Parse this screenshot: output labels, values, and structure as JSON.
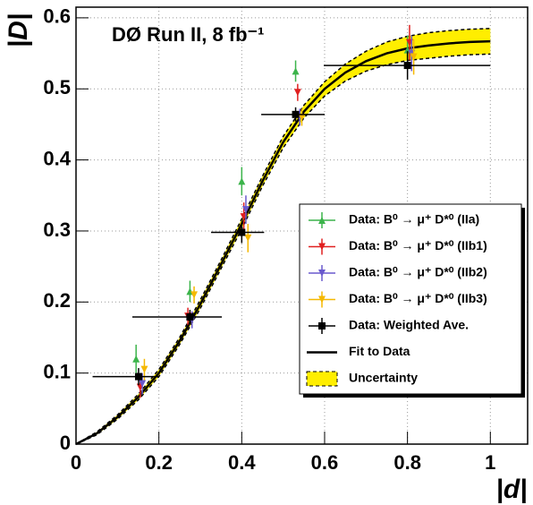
{
  "chart_data": {
    "type": "errorbar",
    "title": "DØ Run II, 8 fb⁻¹",
    "x_label": "|d|",
    "y_label": "|D|",
    "xlim": [
      0,
      1.09
    ],
    "ylim": [
      0,
      0.615
    ],
    "xticks": [
      0,
      0.2,
      0.4,
      0.6,
      0.8,
      1
    ],
    "yticks": [
      0,
      0.1,
      0.2,
      0.3,
      0.4,
      0.5,
      0.6
    ],
    "grid": true,
    "legend": "lower right",
    "series": [
      {
        "name": "Data: B⁰ → μ⁺ D*⁰ (IIa)",
        "color": "#3cb44b",
        "marker": "triangle-up",
        "x": [
          0.145,
          0.275,
          0.4,
          0.53,
          0.8
        ],
        "values": [
          0.12,
          0.215,
          0.37,
          0.525,
          0.555
        ],
        "yerr": [
          0.02,
          0.015,
          0.02,
          0.015,
          0.02
        ]
      },
      {
        "name": "Data: B⁰ → μ⁺ D*⁰ (IIb1)",
        "color": "#e02020",
        "marker": "triangle-down",
        "x": [
          0.155,
          0.27,
          0.405,
          0.535,
          0.805
        ],
        "values": [
          0.08,
          0.18,
          0.32,
          0.495,
          0.565
        ],
        "yerr": [
          0.015,
          0.012,
          0.02,
          0.012,
          0.025
        ]
      },
      {
        "name": "Data: B⁰ → μ⁺ D*⁰ (IIb2)",
        "color": "#6a5acd",
        "marker": "triangle-down",
        "x": [
          0.16,
          0.28,
          0.41,
          0.54,
          0.81
        ],
        "values": [
          0.085,
          0.175,
          0.33,
          0.46,
          0.55
        ],
        "yerr": [
          0.015,
          0.012,
          0.02,
          0.012,
          0.025
        ]
      },
      {
        "name": "Data: B⁰ → μ⁺ D*⁰ (IIb3)",
        "color": "#f5b800",
        "marker": "triangle-down",
        "x": [
          0.165,
          0.285,
          0.415,
          0.545,
          0.815
        ],
        "values": [
          0.105,
          0.21,
          0.29,
          0.46,
          0.545
        ],
        "yerr": [
          0.015,
          0.012,
          0.02,
          0.012,
          0.025
        ]
      },
      {
        "name": "Data: Weighted Ave.",
        "color": "#000000",
        "marker": "square",
        "x": [
          0.151,
          0.275,
          0.4,
          0.53,
          0.8
        ],
        "values": [
          0.095,
          0.179,
          0.298,
          0.464,
          0.533
        ],
        "yerr": [
          0.012,
          0.01,
          0.015,
          0.01,
          0.02
        ],
        "x_low": [
          0.04,
          0.136,
          0.326,
          0.447,
          0.598
        ],
        "x_high": [
          0.2,
          0.352,
          0.454,
          0.6,
          1.0
        ]
      }
    ],
    "fit": {
      "name": "Fit to Data",
      "color": "#000000",
      "x": [
        0,
        0.05,
        0.1,
        0.15,
        0.2,
        0.25,
        0.3,
        0.35,
        0.4,
        0.45,
        0.5,
        0.55,
        0.6,
        0.65,
        0.7,
        0.75,
        0.8,
        0.85,
        0.9,
        0.95,
        1.0
      ],
      "values": [
        0,
        0.015,
        0.038,
        0.066,
        0.1,
        0.145,
        0.197,
        0.253,
        0.31,
        0.37,
        0.425,
        0.468,
        0.5,
        0.523,
        0.539,
        0.55,
        0.557,
        0.561,
        0.564,
        0.566,
        0.567
      ]
    },
    "band": {
      "name": "Uncertainty",
      "color": "#ffee00",
      "x": [
        0,
        0.05,
        0.1,
        0.15,
        0.2,
        0.25,
        0.3,
        0.35,
        0.4,
        0.45,
        0.5,
        0.55,
        0.6,
        0.65,
        0.7,
        0.75,
        0.8,
        0.85,
        0.9,
        0.95,
        1.0
      ],
      "upper": [
        0,
        0.017,
        0.041,
        0.07,
        0.105,
        0.15,
        0.203,
        0.259,
        0.317,
        0.377,
        0.433,
        0.477,
        0.51,
        0.535,
        0.553,
        0.566,
        0.574,
        0.579,
        0.582,
        0.584,
        0.585
      ],
      "lower": [
        0,
        0.013,
        0.035,
        0.062,
        0.095,
        0.14,
        0.191,
        0.247,
        0.303,
        0.363,
        0.417,
        0.459,
        0.49,
        0.511,
        0.525,
        0.534,
        0.54,
        0.543,
        0.546,
        0.548,
        0.549
      ]
    }
  }
}
